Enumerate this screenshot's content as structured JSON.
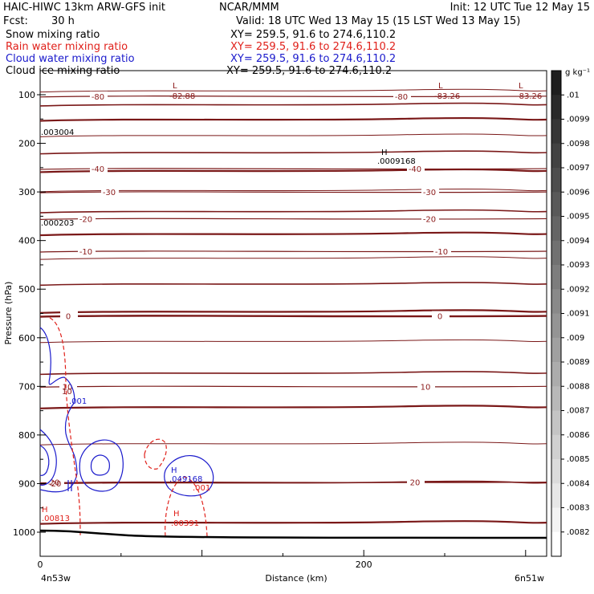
{
  "header": {
    "model": "HAIC-HIWC 13km ARW-GFS init",
    "center": "NCAR/MMM",
    "init": "Init: 12 UTC Tue 12 May 15",
    "fcst_label": "Fcst:",
    "fcst_value": "30 h",
    "valid": "Valid: 18 UTC Wed 13 May 15 (15 LST Wed 13 May 15)"
  },
  "fields": [
    {
      "name": "Snow mixing ratio",
      "xy": "XY= 259.5, 91.6 to 274.6,110.2",
      "color": "#000000"
    },
    {
      "name": "Rain water mixing ratio",
      "xy": "XY= 259.5, 91.6 to 274.6,110.2",
      "color": "#e0201a"
    },
    {
      "name": "Cloud water mixing ratio",
      "xy": "XY= 259.5, 91.6 to 274.6,110.2",
      "color": "#1a1acc"
    },
    {
      "name": "Cloud ice mixing ratio",
      "xy": "XY= 259.5, 91.6 to 274.6,110.2",
      "color": "#000000"
    }
  ],
  "axes": {
    "ylabel": "Pressure (hPa)",
    "xlabel": "Distance (km)",
    "left_end": "4n53w",
    "right_end": "6n51w"
  },
  "colorbar": {
    "unit": "g kg⁻¹",
    "labels": [
      ".01",
      ".0099",
      ".0098",
      ".0097",
      ".0096",
      ".0095",
      ".0094",
      ".0093",
      ".0092",
      ".0091",
      ".009",
      ".0089",
      ".0088",
      ".0087",
      ".0086",
      ".0085",
      ".0084",
      ".0083",
      ".0082"
    ]
  },
  "annotations": [
    {
      "text": "L",
      "color": "#8b1a1a"
    },
    {
      "text": "-82.88",
      "color": "#8b1a1a"
    },
    {
      "text": "L",
      "color": "#8b1a1a"
    },
    {
      "text": "-83.26",
      "color": "#8b1a1a"
    },
    {
      "text": "L",
      "color": "#8b1a1a"
    },
    {
      "text": "-83.26",
      "color": "#8b1a1a"
    },
    {
      "text": ".003004",
      "color": "#000000"
    },
    {
      "text": "H",
      "color": "#000000"
    },
    {
      "text": ".0009168",
      "color": "#000000"
    },
    {
      "text": ".000203",
      "color": "#000000"
    },
    {
      "text": "10",
      "color": "#8b1a1a"
    },
    {
      "text": ".001",
      "color": "#1a1acc"
    },
    {
      "text": "H",
      "color": "#1a1acc"
    },
    {
      "text": ".049168",
      "color": "#1a1acc"
    },
    {
      "text": ".001",
      "color": "#e0201a"
    },
    {
      "text": "-20",
      "color": "#8b1a1a"
    },
    {
      "text": "H",
      "color": "#e0201a"
    },
    {
      "text": ".00813",
      "color": "#e0201a"
    },
    {
      "text": "H",
      "color": "#e0201a"
    },
    {
      "text": ".00391",
      "color": "#e0201a"
    }
  ],
  "chart_data": {
    "type": "contour",
    "x_range": [
      0,
      313
    ],
    "x_ticks": [
      0,
      200
    ],
    "y_range_hpa": [
      1050,
      50
    ],
    "y_ticks": [
      100,
      200,
      300,
      400,
      500,
      600,
      700,
      800,
      900,
      1000
    ],
    "temperature_contours": [
      {
        "label": "-80",
        "p_left": 103,
        "p_right": 103
      },
      {
        "label": "-40",
        "p_left": 252,
        "p_right": 252
      },
      {
        "label": "-30",
        "p_left": 300,
        "p_right": 300
      },
      {
        "label": "-20",
        "p_left": 355,
        "p_right": 355
      },
      {
        "label": "-10",
        "p_left": 422,
        "p_right": 422
      },
      {
        "label": "0",
        "p_left": 555,
        "p_right": 555
      },
      {
        "label": "10",
        "p_left": 700,
        "p_right": 700
      },
      {
        "label": "20",
        "p_left": 897,
        "p_right": 897
      }
    ],
    "mixing_ratio_maxima": [
      {
        "field": "Cloud water mixing ratio",
        "label": "H",
        "value": 0.049168,
        "x_km": 80,
        "p_hpa": 885
      },
      {
        "field": "Rain water mixing ratio",
        "label": "H",
        "value": 0.00813,
        "x_km": 2,
        "p_hpa": 960
      },
      {
        "field": "Rain water mixing ratio",
        "label": "H",
        "value": 0.00391,
        "x_km": 82,
        "p_hpa": 975
      },
      {
        "field": "Snow mixing ratio",
        "label": "H",
        "value": 0.0009168,
        "x_km": 210,
        "p_hpa": 210
      }
    ]
  }
}
